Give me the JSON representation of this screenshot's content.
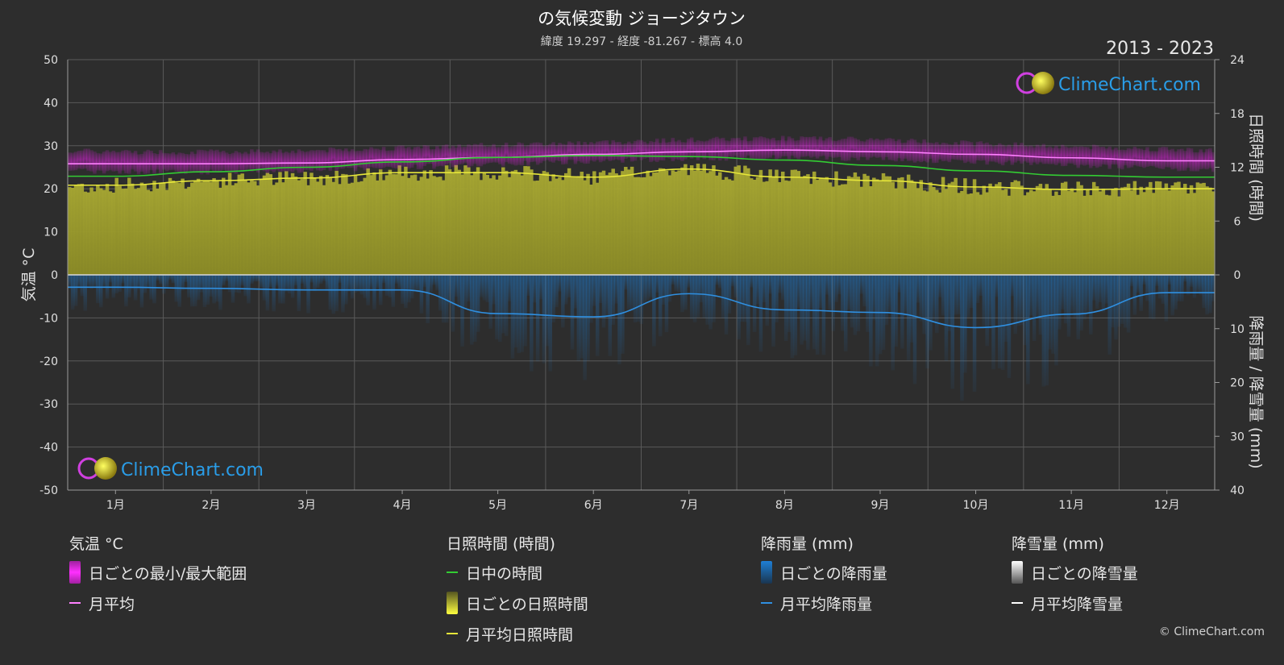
{
  "header": {
    "title": "の気候変動 ジョージタウン",
    "subtitle": "緯度 19.297 - 経度 -81.267 - 標高 4.0",
    "period": "2013 - 2023"
  },
  "brand": {
    "name": "ClimeChart.com",
    "copyright": "© ClimeChart.com"
  },
  "colors": {
    "temp_range": "#e020e0",
    "temp_avg": "#ff80ff",
    "daylight": "#33cc33",
    "sunshine_fill": "#9a9a2a",
    "sunshine_avg": "#e6e63a",
    "rain": "#1e7fd6",
    "rain_avg": "#2f8fe0",
    "snow_avg": "#ffffff"
  },
  "chart_data": {
    "type": "line",
    "categories": [
      "1月",
      "2月",
      "3月",
      "4月",
      "5月",
      "6月",
      "7月",
      "8月",
      "9月",
      "10月",
      "11月",
      "12月"
    ],
    "y_left": {
      "label": "気温 °C",
      "range": [
        -50,
        50
      ],
      "ticks": [
        50,
        40,
        30,
        20,
        10,
        0,
        -10,
        -20,
        -30,
        -40,
        -50
      ]
    },
    "y_right_top": {
      "label": "日照時間 (時間)",
      "range": [
        0,
        24
      ],
      "ticks": [
        24,
        18,
        12,
        6,
        0
      ]
    },
    "y_right_bottom": {
      "label": "降雨量 / 降雪量 (mm)",
      "range": [
        0,
        40
      ],
      "ticks": [
        10,
        20,
        30,
        40
      ]
    },
    "grid": true,
    "series": [
      {
        "name": "月平均",
        "axis": "temperature",
        "values": [
          25.8,
          25.8,
          26.0,
          26.8,
          27.3,
          28.0,
          28.6,
          29.0,
          28.6,
          28.0,
          27.2,
          26.5
        ]
      },
      {
        "name": "日中の時間",
        "axis": "sunshine",
        "values": [
          11.0,
          11.5,
          12.0,
          12.6,
          13.1,
          13.3,
          13.2,
          12.8,
          12.2,
          11.6,
          11.1,
          10.9
        ]
      },
      {
        "name": "月平均日照時間",
        "axis": "sunshine",
        "values": [
          10.0,
          10.5,
          10.8,
          11.4,
          11.4,
          10.9,
          11.8,
          10.9,
          10.5,
          9.8,
          9.5,
          9.6
        ]
      },
      {
        "name": "月平均降雨量",
        "axis": "rain",
        "values": [
          2.3,
          2.5,
          2.8,
          2.8,
          7.2,
          7.8,
          3.5,
          6.5,
          7.0,
          9.8,
          7.3,
          3.3
        ]
      },
      {
        "name": "月平均降雪量",
        "axis": "rain",
        "values": [
          0,
          0,
          0,
          0,
          0,
          0,
          0,
          0,
          0,
          0,
          0,
          0
        ]
      }
    ],
    "temp_range": {
      "name": "日ごとの最小/最大範囲",
      "min": [
        24.5,
        24.5,
        24.8,
        25.6,
        26.3,
        27.0,
        27.6,
        27.8,
        27.4,
        26.8,
        26.0,
        25.2
      ],
      "max": [
        28.0,
        28.0,
        28.3,
        29.0,
        29.6,
        30.2,
        30.8,
        31.2,
        30.8,
        30.0,
        29.2,
        28.6
      ]
    }
  },
  "legend": {
    "groups": [
      {
        "title": "気温 °C",
        "items": [
          {
            "type": "rect",
            "label": "日ごとの最小/最大範囲"
          },
          {
            "type": "line",
            "label": "月平均"
          }
        ]
      },
      {
        "title": "日照時間 (時間)",
        "items": [
          {
            "type": "line",
            "label": "日中の時間"
          },
          {
            "type": "rect",
            "label": "日ごとの日照時間"
          },
          {
            "type": "line",
            "label": "月平均日照時間"
          }
        ]
      },
      {
        "title": "降雨量 (mm)",
        "items": [
          {
            "type": "rect",
            "label": "日ごとの降雨量"
          },
          {
            "type": "line",
            "label": "月平均降雨量"
          }
        ]
      },
      {
        "title": "降雪量 (mm)",
        "items": [
          {
            "type": "rect",
            "label": "日ごとの降雪量"
          },
          {
            "type": "line",
            "label": "月平均降雪量"
          }
        ]
      }
    ]
  }
}
